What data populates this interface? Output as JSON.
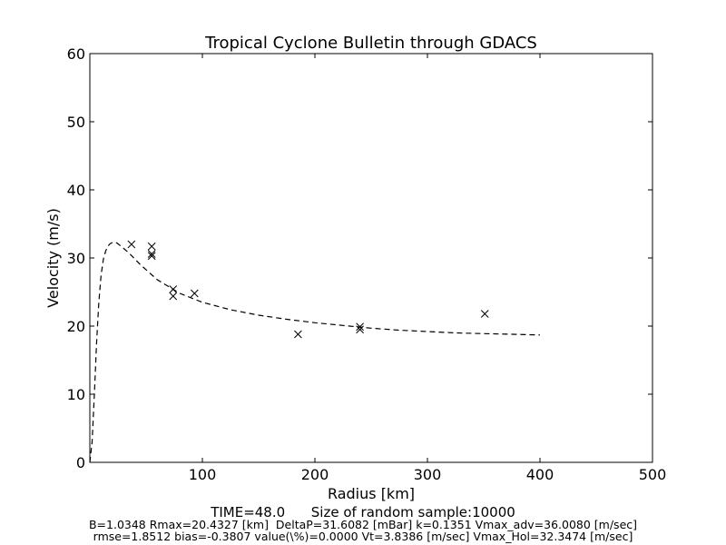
{
  "chart_data": {
    "type": "scatter",
    "title": "Tropical Cyclone Bulletin through GDACS",
    "xlabel": "Radius [km]",
    "ylabel": "Velocity (m/s)",
    "xlim": [
      0,
      500
    ],
    "ylim": [
      0,
      60
    ],
    "xticks": [
      100,
      200,
      300,
      400,
      500
    ],
    "yticks": [
      0,
      10,
      20,
      30,
      40,
      50,
      60
    ],
    "grid": false,
    "legend": false,
    "series": [
      {
        "style": "x-markers",
        "points": [
          [
            37,
            32.0
          ],
          [
            55,
            31.7
          ],
          [
            55,
            30.6
          ],
          [
            55,
            30.3
          ],
          [
            74,
            25.4
          ],
          [
            74,
            24.4
          ],
          [
            93,
            24.8
          ],
          [
            185,
            18.8
          ],
          [
            240,
            19.9
          ],
          [
            240,
            19.5
          ],
          [
            351,
            21.8
          ]
        ]
      },
      {
        "style": "dashed-line",
        "points": [
          [
            0,
            0
          ],
          [
            2,
            3
          ],
          [
            4,
            10
          ],
          [
            6,
            17.5
          ],
          [
            8,
            23.5
          ],
          [
            10,
            27.5
          ],
          [
            12,
            29.8
          ],
          [
            14,
            31.0
          ],
          [
            16,
            31.7
          ],
          [
            18,
            32.1
          ],
          [
            20.4,
            32.3
          ],
          [
            24,
            32.2
          ],
          [
            28,
            31.7
          ],
          [
            35,
            30.7
          ],
          [
            45,
            29.0
          ],
          [
            60,
            26.8
          ],
          [
            80,
            24.8
          ],
          [
            100,
            23.5
          ],
          [
            125,
            22.4
          ],
          [
            150,
            21.6
          ],
          [
            175,
            21.0
          ],
          [
            200,
            20.5
          ],
          [
            225,
            20.1
          ],
          [
            250,
            19.7
          ],
          [
            275,
            19.4
          ],
          [
            300,
            19.2
          ],
          [
            325,
            19.0
          ],
          [
            350,
            18.9
          ],
          [
            375,
            18.8
          ],
          [
            400,
            18.7
          ]
        ]
      }
    ]
  },
  "footer": {
    "line1": "TIME=48.0      Size of random sample:10000",
    "line2": "B=1.0348 Rmax=20.4327 [km]  DeltaP=31.6082 [mBar] k=0.1351 Vmax_adv=36.0080 [m/sec]",
    "line3": "rmse=1.8512 bias=-0.3807 value(\\%)=0.0000 Vt=3.8386 [m/sec] Vmax_Hol=32.3474 [m/sec]"
  }
}
